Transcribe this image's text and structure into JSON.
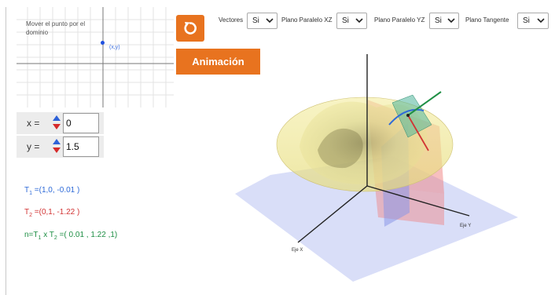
{
  "domain": {
    "title_line1": "Mover el punto por el",
    "title_line2": "dominio",
    "point_label": "(x,y)"
  },
  "toggles": [
    {
      "label": "Vectores",
      "value": "Si"
    },
    {
      "label": "Plano Paralelo XZ",
      "value": "Si"
    },
    {
      "label": "Plano Paralelo YZ",
      "value": "Si"
    },
    {
      "label": "Plano Tangente",
      "value": "Si"
    }
  ],
  "buttons": {
    "reset_icon": "reset-icon",
    "animation_label": "Animación"
  },
  "inputs": {
    "x": {
      "label": "x =",
      "value": "0"
    },
    "y": {
      "label": "y =",
      "value": "1.5"
    }
  },
  "equations": {
    "t1": {
      "name": "T",
      "sub": "1",
      "value": " =(1,0, -0.01 )"
    },
    "t2": {
      "name": "T",
      "sub": "2",
      "value": " =(0,1, -1.22 )"
    },
    "n": {
      "prefix": "n=T",
      "sub1": "1",
      "mid": "  x T",
      "sub2": "2",
      "value": "  =( 0.01 , 1.22 ,1)"
    }
  },
  "axes": {
    "x_label": "Eje X",
    "y_label": "Eje Y"
  },
  "colors": {
    "accent": "#e8731f",
    "t1": "#2f6bd8",
    "t2": "#d23434",
    "n": "#1f8f45"
  }
}
